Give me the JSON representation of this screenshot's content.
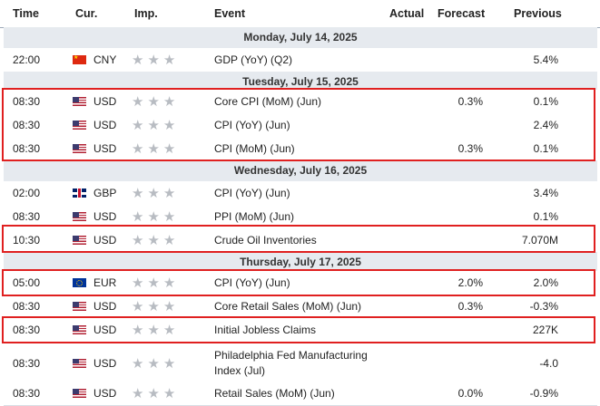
{
  "header": {
    "time": "Time",
    "currency": "Cur.",
    "importance": "Imp.",
    "event": "Event",
    "actual": "Actual",
    "forecast": "Forecast",
    "previous": "Previous"
  },
  "days": [
    "Monday, July 14, 2025",
    "Tuesday, July 15, 2025",
    "Wednesday, July 16, 2025",
    "Thursday, July 17, 2025"
  ],
  "rows": [
    {
      "time": "22:00",
      "flag": "china-flag-icon",
      "currency": "CNY",
      "event": "GDP (YoY) (Q2)",
      "actual": "",
      "forecast": "",
      "previous": "5.4%"
    },
    {
      "time": "08:30",
      "flag": "us-flag-icon",
      "currency": "USD",
      "event": "Core CPI (MoM) (Jun)",
      "actual": "",
      "forecast": "0.3%",
      "previous": "0.1%"
    },
    {
      "time": "08:30",
      "flag": "us-flag-icon",
      "currency": "USD",
      "event": "CPI (YoY) (Jun)",
      "actual": "",
      "forecast": "",
      "previous": "2.4%"
    },
    {
      "time": "08:30",
      "flag": "us-flag-icon",
      "currency": "USD",
      "event": "CPI (MoM) (Jun)",
      "actual": "",
      "forecast": "0.3%",
      "previous": "0.1%"
    },
    {
      "time": "02:00",
      "flag": "uk-flag-icon",
      "currency": "GBP",
      "event": "CPI (YoY) (Jun)",
      "actual": "",
      "forecast": "",
      "previous": "3.4%"
    },
    {
      "time": "08:30",
      "flag": "us-flag-icon",
      "currency": "USD",
      "event": "PPI (MoM) (Jun)",
      "actual": "",
      "forecast": "",
      "previous": "0.1%"
    },
    {
      "time": "10:30",
      "flag": "us-flag-icon",
      "currency": "USD",
      "event": "Crude Oil Inventories",
      "actual": "",
      "forecast": "",
      "previous": "7.070M"
    },
    {
      "time": "05:00",
      "flag": "eu-flag-icon",
      "currency": "EUR",
      "event": "CPI (YoY) (Jun)",
      "actual": "",
      "forecast": "2.0%",
      "previous": "2.0%"
    },
    {
      "time": "08:30",
      "flag": "us-flag-icon",
      "currency": "USD",
      "event": "Core Retail Sales (MoM) (Jun)",
      "actual": "",
      "forecast": "0.3%",
      "previous": "-0.3%"
    },
    {
      "time": "08:30",
      "flag": "us-flag-icon",
      "currency": "USD",
      "event": "Initial Jobless Claims",
      "actual": "",
      "forecast": "",
      "previous": "227K"
    },
    {
      "time": "08:30",
      "flag": "us-flag-icon",
      "currency": "USD",
      "event": "Philadelphia Fed Manufacturing Index (Jul)",
      "actual": "",
      "forecast": "",
      "previous": "-4.0"
    },
    {
      "time": "08:30",
      "flag": "us-flag-icon",
      "currency": "USD",
      "event": "Retail Sales (MoM) (Jun)",
      "actual": "",
      "forecast": "0.0%",
      "previous": "-0.9%"
    }
  ],
  "importance_stars": 3,
  "colors": {
    "highlight": "#e02020",
    "day_band": "#e6eaef",
    "star": "#b8bcc2"
  }
}
